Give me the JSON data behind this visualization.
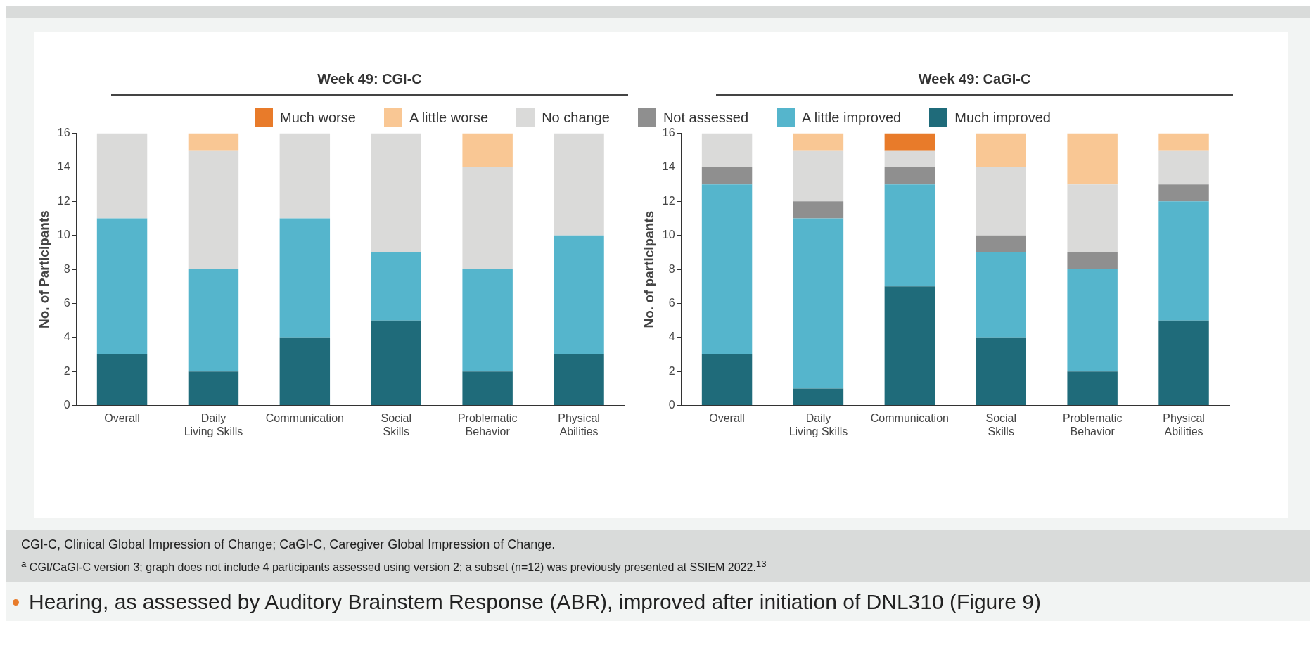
{
  "chart_data": [
    {
      "type": "bar",
      "title": "Week 49: CGI-C",
      "ylabel": "No. of Participants",
      "stacked": true,
      "grid": false,
      "categories": [
        "Overall",
        "Daily Living Skills",
        "Communication",
        "Social Skills",
        "Problematic Behavior",
        "Physical Abilities"
      ],
      "ylim": [
        0,
        16
      ],
      "yticks": [
        0,
        2,
        4,
        6,
        8,
        10,
        12,
        14,
        16
      ],
      "series": [
        {
          "color": "#1f6b7a",
          "values": [
            3,
            2,
            4,
            5,
            2,
            3
          ]
        },
        {
          "color": "#55b5cc",
          "values": [
            8,
            6,
            7,
            4,
            6,
            7
          ]
        },
        {
          "color": "#8f8f8f",
          "values": [
            0,
            0,
            0,
            0,
            0,
            0
          ]
        },
        {
          "color": "#dadad9",
          "values": [
            5,
            7,
            5,
            7,
            6,
            6
          ]
        },
        {
          "color": "#f9c794",
          "values": [
            0,
            1,
            0,
            0,
            2,
            0
          ]
        },
        {
          "color": "#e87b2a",
          "values": [
            0,
            0,
            0,
            0,
            0,
            0
          ]
        }
      ],
      "annotations": [
        "CGI-C, Clinical Global Impression of Change; CaGI-C, Caregiver Global Impression of Change.",
        "$^{a}$ CGI/CaGI-C version 3; graph does not include 4 participants assessed using version 2; a subset (n=12) was previously presented at SSIEM 2022.$^{13}$",
        "Hearing, as assessed by Auditory Brainstem Response (ABR), improved after initiation of DNL310 (Figure 9)"
      ]
    },
    {
      "type": "bar",
      "title": "Week 49: CaGI-C",
      "ylabel": "No. of participants",
      "stacked": true,
      "legend": "top",
      "grid": false,
      "categories": [
        "Overall",
        "Daily Living Skills",
        "Communication",
        "Social Skills",
        "Problematic Behavior",
        "Physical Abilities"
      ],
      "ylim": [
        0,
        16
      ],
      "yticks": [
        0,
        2,
        4,
        6,
        8,
        10,
        12,
        14,
        16
      ],
      "series": [
        {
          "name": "Much improved",
          "color": "#1f6b7a",
          "values": [
            3,
            1,
            7,
            4,
            2,
            5
          ]
        },
        {
          "name": "A little improved",
          "color": "#55b5cc",
          "values": [
            10,
            10,
            6,
            5,
            6,
            7
          ]
        },
        {
          "name": "Not assessed",
          "color": "#8f8f8f",
          "values": [
            1,
            1,
            1,
            1,
            1,
            1
          ]
        },
        {
          "name": "No change",
          "color": "#dadad9",
          "values": [
            2,
            3,
            1,
            4,
            4,
            2
          ]
        },
        {
          "name": "A little worse",
          "color": "#f9c794",
          "values": [
            0,
            1,
            0,
            2,
            3,
            1
          ]
        },
        {
          "name": "Much worse",
          "color": "#e87b2a",
          "values": [
            0,
            0,
            1,
            0,
            0,
            0
          ]
        }
      ]
    }
  ]
}
